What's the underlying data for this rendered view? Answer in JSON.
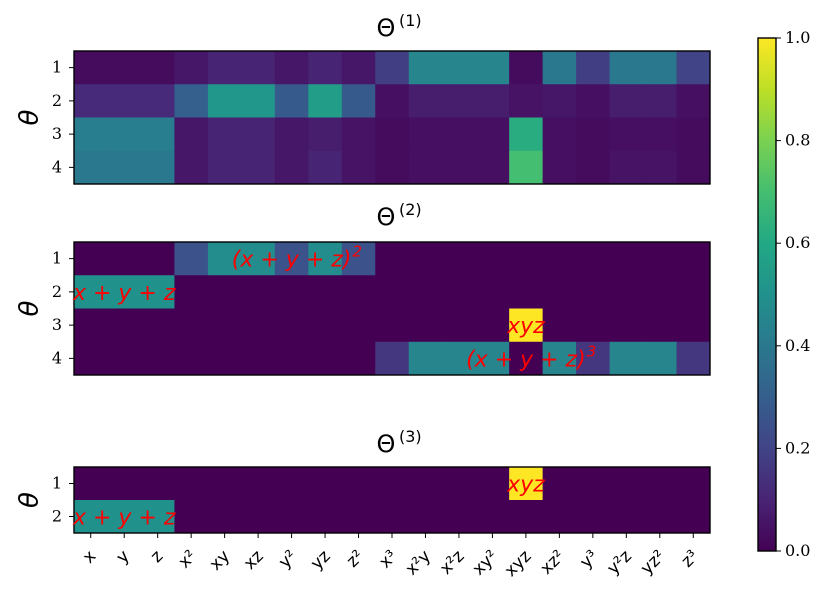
{
  "chart_data": {
    "type": "heatmap",
    "colormap": "viridis",
    "columns": [
      "x",
      "y",
      "z",
      "x²",
      "xy",
      "xz",
      "y²",
      "yz",
      "z²",
      "x³",
      "x²y",
      "x²z",
      "xy²",
      "xyz",
      "xz²",
      "y³",
      "y²z",
      "yz²",
      "z³"
    ],
    "colorbar": {
      "min": 0.0,
      "max": 1.0,
      "ticks": [
        "0.0",
        "0.2",
        "0.4",
        "0.6",
        "0.8",
        "1.0"
      ]
    },
    "ylabel": "θ",
    "panels": [
      {
        "title": "Θ",
        "title_sup": "(1)",
        "row_labels": [
          "1",
          "2",
          "3",
          "4"
        ],
        "values": [
          [
            0.03,
            0.03,
            0.03,
            0.06,
            0.1,
            0.1,
            0.06,
            0.1,
            0.06,
            0.18,
            0.45,
            0.45,
            0.45,
            0.03,
            0.4,
            0.18,
            0.4,
            0.4,
            0.2
          ],
          [
            0.12,
            0.12,
            0.12,
            0.3,
            0.52,
            0.52,
            0.28,
            0.55,
            0.28,
            0.04,
            0.08,
            0.08,
            0.08,
            0.05,
            0.06,
            0.04,
            0.08,
            0.08,
            0.04
          ],
          [
            0.42,
            0.42,
            0.42,
            0.06,
            0.1,
            0.1,
            0.06,
            0.08,
            0.05,
            0.03,
            0.04,
            0.04,
            0.04,
            0.62,
            0.04,
            0.03,
            0.04,
            0.04,
            0.03
          ],
          [
            0.4,
            0.4,
            0.4,
            0.06,
            0.1,
            0.1,
            0.06,
            0.1,
            0.05,
            0.03,
            0.04,
            0.04,
            0.04,
            0.7,
            0.04,
            0.03,
            0.05,
            0.05,
            0.03
          ]
        ],
        "annotations": []
      },
      {
        "title": "Θ",
        "title_sup": "(2)",
        "row_labels": [
          "1",
          "2",
          "3",
          "4"
        ],
        "values": [
          [
            0.0,
            0.0,
            0.0,
            0.25,
            0.48,
            0.48,
            0.25,
            0.48,
            0.25,
            0.0,
            0.0,
            0.0,
            0.0,
            0.0,
            0.0,
            0.0,
            0.0,
            0.0,
            0.0
          ],
          [
            0.5,
            0.5,
            0.5,
            0.0,
            0.0,
            0.0,
            0.0,
            0.0,
            0.0,
            0.0,
            0.0,
            0.0,
            0.0,
            0.0,
            0.0,
            0.0,
            0.0,
            0.0,
            0.0
          ],
          [
            0.0,
            0.0,
            0.0,
            0.0,
            0.0,
            0.0,
            0.0,
            0.0,
            0.0,
            0.0,
            0.0,
            0.0,
            0.0,
            1.0,
            0.0,
            0.0,
            0.0,
            0.0,
            0.0
          ],
          [
            0.0,
            0.0,
            0.0,
            0.0,
            0.0,
            0.0,
            0.0,
            0.0,
            0.0,
            0.16,
            0.45,
            0.45,
            0.45,
            0.0,
            0.45,
            0.16,
            0.45,
            0.45,
            0.16
          ]
        ],
        "annotations": [
          {
            "text": "(x + y + z)",
            "sup": "2",
            "row": 0,
            "col_center": 6
          },
          {
            "text": "x + y + z",
            "sup": "",
            "row": 1,
            "col_center": 1
          },
          {
            "text": "xyz",
            "sup": "",
            "row": 2,
            "col_center": 13
          },
          {
            "text": "(x + y + z)",
            "sup": "3",
            "row": 3,
            "col_center": 13
          }
        ]
      },
      {
        "title": "Θ",
        "title_sup": "(3)",
        "row_labels": [
          "1",
          "2"
        ],
        "values": [
          [
            0.0,
            0.0,
            0.0,
            0.0,
            0.0,
            0.0,
            0.0,
            0.0,
            0.0,
            0.0,
            0.0,
            0.0,
            0.0,
            1.0,
            0.0,
            0.0,
            0.0,
            0.0,
            0.0
          ],
          [
            0.5,
            0.5,
            0.5,
            0.0,
            0.0,
            0.0,
            0.0,
            0.0,
            0.0,
            0.0,
            0.0,
            0.0,
            0.0,
            0.0,
            0.0,
            0.0,
            0.0,
            0.0,
            0.0
          ]
        ],
        "annotations": [
          {
            "text": "xyz",
            "sup": "",
            "row": 0,
            "col_center": 13
          },
          {
            "text": "x + y + z",
            "sup": "",
            "row": 1,
            "col_center": 1
          }
        ]
      }
    ]
  }
}
